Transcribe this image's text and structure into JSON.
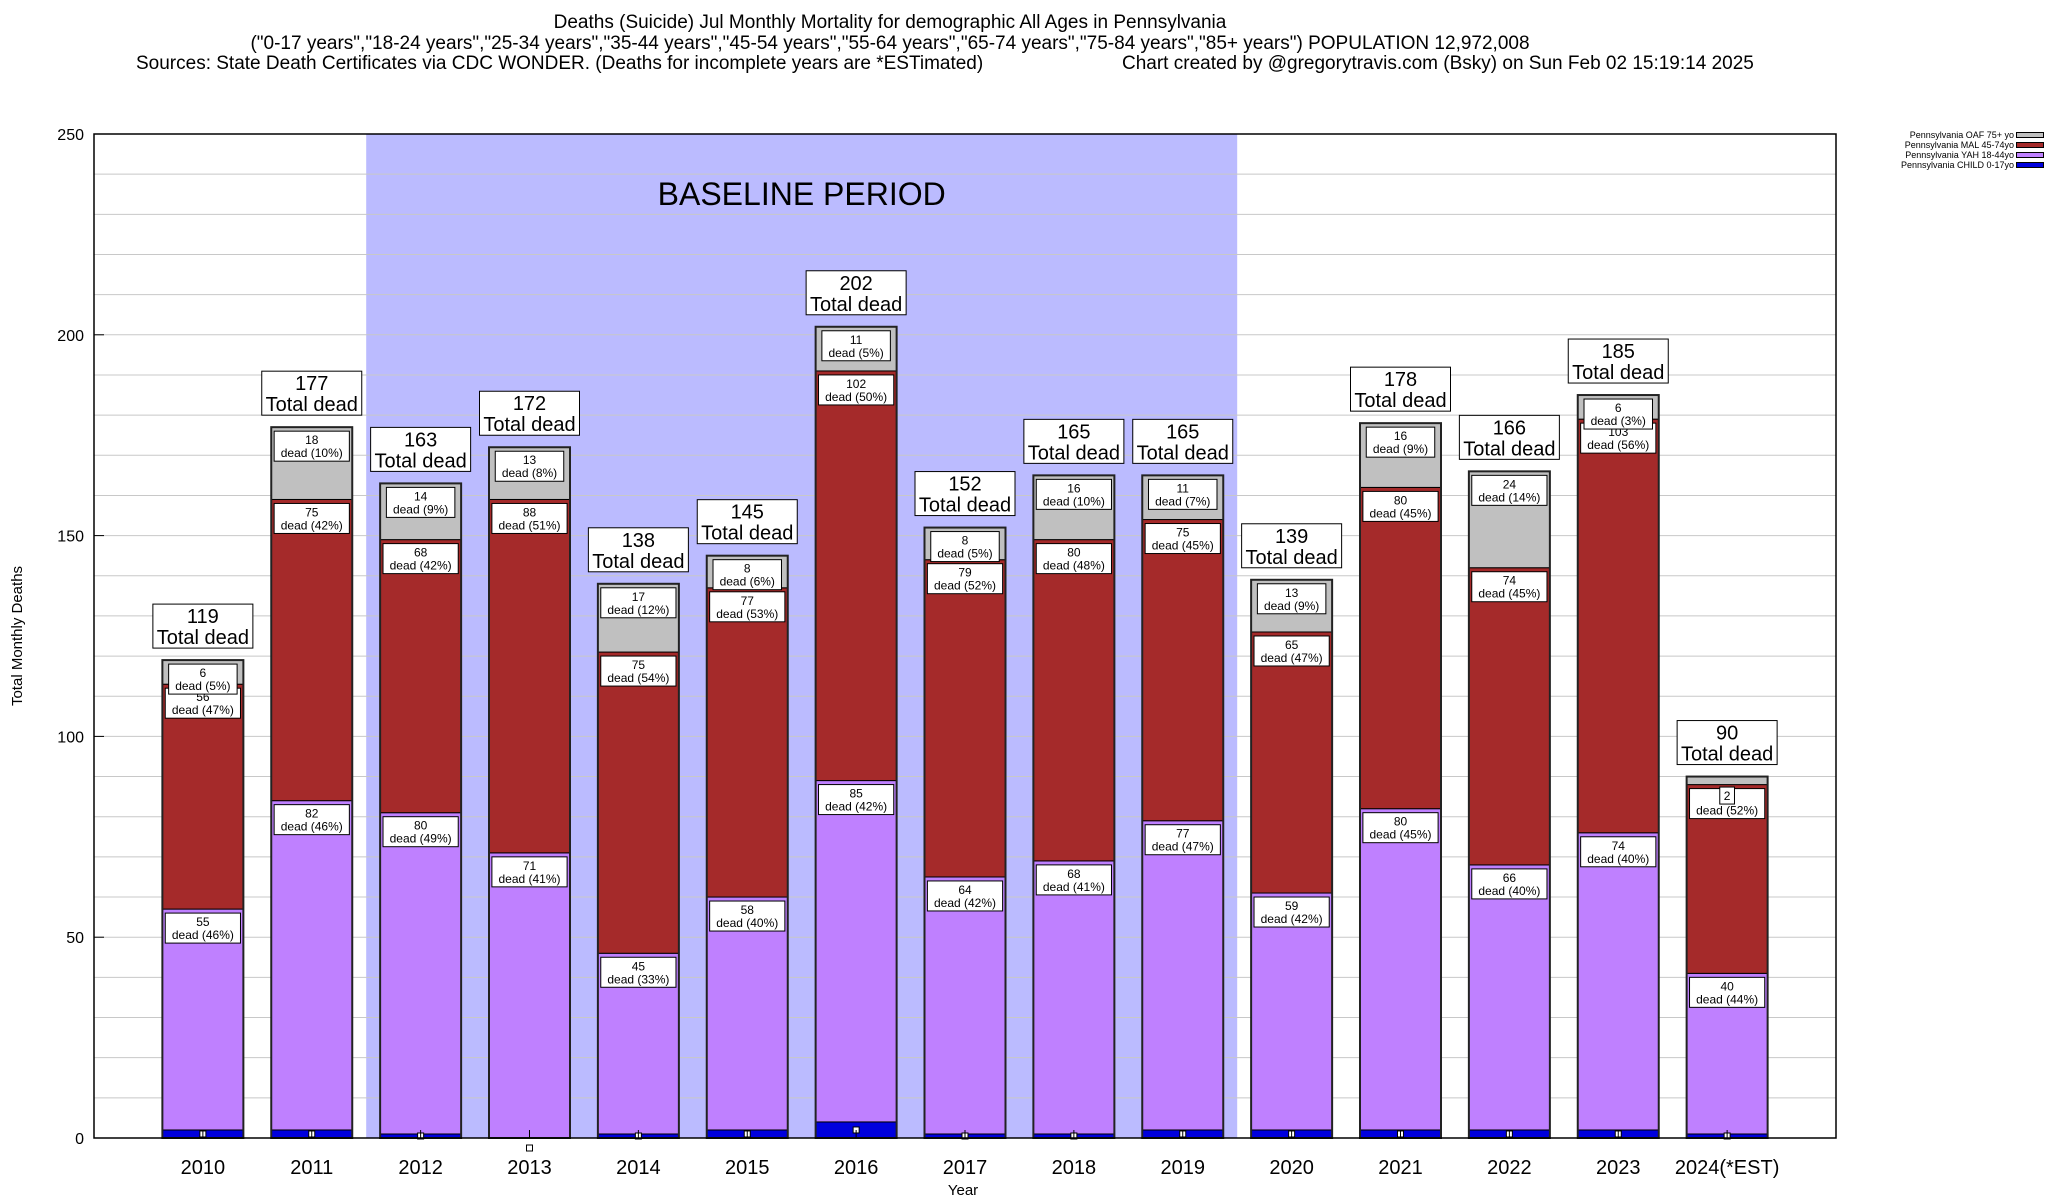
{
  "header": {
    "title": "Deaths (Suicide) Jul Monthly Mortality for demographic All Ages in Pennsylvania",
    "subtitle": "(\"0-17 years\",\"18-24 years\",\"25-34 years\",\"35-44 years\",\"45-54 years\",\"55-64 years\",\"65-74 years\",\"75-84 years\",\"85+ years\") POPULATION 12,972,008",
    "sources": "Sources: State Death Certificates via CDC WONDER. (Deaths for incomplete years are *ESTimated)",
    "credit": "Chart created by @gregorytravis.com (Bsky) on Sun Feb 02 15:19:14 2025"
  },
  "chart_data": {
    "type": "bar",
    "stacked": true,
    "xlabel": "Year",
    "ylabel": "Total Monthly Deaths",
    "ylim": [
      0,
      250
    ],
    "yticks": [
      0,
      50,
      100,
      150,
      200,
      250
    ],
    "minor_grid_step": 10,
    "grid": true,
    "legend_position": "top-right",
    "categories": [
      "2010",
      "2011",
      "2012",
      "2013",
      "2014",
      "2015",
      "2016",
      "2017",
      "2018",
      "2019",
      "2020",
      "2021",
      "2022",
      "2023",
      "2024(*EST)"
    ],
    "series": [
      {
        "name": "Pennsylvania CHILD 0-17yo",
        "color": "#0000dd",
        "values": [
          2,
          2,
          1,
          0,
          1,
          2,
          4,
          1,
          1,
          2,
          2,
          2,
          2,
          2,
          1
        ]
      },
      {
        "name": "Pennsylvania YAH 18-44yo",
        "color": "#bf80ff",
        "values": [
          55,
          82,
          80,
          71,
          45,
          58,
          85,
          64,
          68,
          77,
          59,
          80,
          66,
          74,
          40
        ]
      },
      {
        "name": "Pennsylvania MAL 45-74yo",
        "color": "#a52a2a",
        "values": [
          56,
          75,
          68,
          88,
          75,
          77,
          102,
          79,
          80,
          75,
          65,
          80,
          74,
          103,
          47
        ]
      },
      {
        "name": "Pennsylvania OAF 75+ yo",
        "color": "#c0c0c0",
        "values": [
          6,
          18,
          14,
          13,
          17,
          8,
          11,
          8,
          16,
          11,
          13,
          16,
          24,
          6,
          2
        ]
      }
    ],
    "totals": [
      119,
      177,
      163,
      172,
      138,
      145,
      202,
      152,
      165,
      165,
      139,
      178,
      166,
      185,
      90
    ],
    "segment_labels": {
      "Pennsylvania YAH 18-44yo": [
        "55\ndead (46%)",
        "82\ndead (46%)",
        "80\ndead (49%)",
        "71\ndead (41%)",
        "45\ndead (33%)",
        "58\ndead (40%)",
        "85\ndead (42%)",
        "64\ndead (42%)",
        "68\ndead (41%)",
        "77\ndead (47%)",
        "59\ndead (42%)",
        "80\ndead (45%)",
        "66\ndead (40%)",
        "74\ndead (40%)",
        "40\ndead (44%)"
      ],
      "Pennsylvania MAL 45-74yo": [
        "56\ndead (47%)",
        "75\ndead (42%)",
        "68\ndead (42%)",
        "88\ndead (51%)",
        "75\ndead (54%)",
        "77\ndead (53%)",
        "102\ndead (50%)",
        "79\ndead (52%)",
        "80\ndead (48%)",
        "75\ndead (45%)",
        "65\ndead (47%)",
        "80\ndead (45%)",
        "74\ndead (45%)",
        "103\ndead (56%)",
        "47\ndead (52%)"
      ],
      "Pennsylvania OAF 75+ yo": [
        "6\ndead (5%)",
        "18\ndead (10%)",
        "14\ndead (9%)",
        "13\ndead (8%)",
        "17\ndead (12%)",
        "8\ndead (6%)",
        "11\ndead (5%)",
        "8\ndead (5%)",
        "16\ndead (10%)",
        "11\ndead (7%)",
        "13\ndead (9%)",
        "16\ndead (9%)",
        "24\ndead (14%)",
        "6\ndead (3%)",
        "2"
      ]
    },
    "total_suffix": "Total dead",
    "annotation": {
      "text": "BASELINE PERIOD",
      "from": "2012",
      "to": "2019",
      "color": "#bbbbff"
    }
  }
}
